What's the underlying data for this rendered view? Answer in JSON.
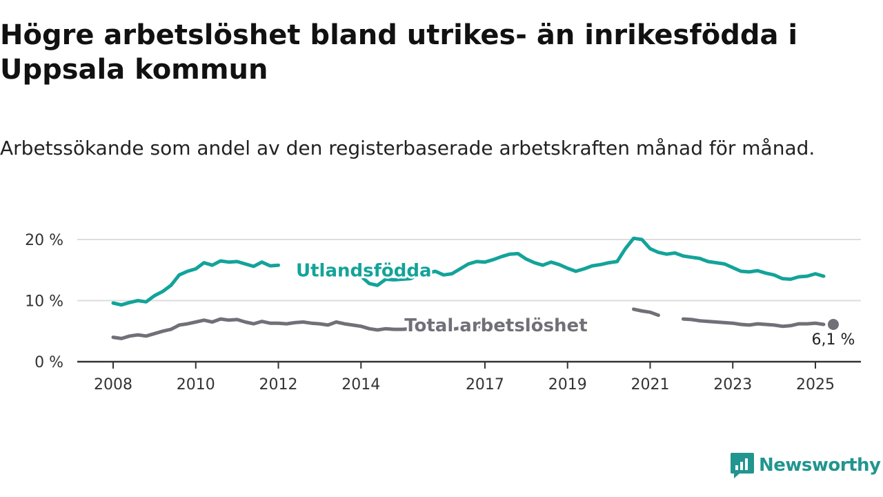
{
  "title": "Högre arbetslöshet bland utrikes- än inrikesfödda i Uppsala kommun",
  "subtitle": "Arbetssökande som andel av den registerbaserade arbetskraften månad för månad.",
  "brand": {
    "name": "Newsworthy",
    "icon": "newsworthy-logo-icon"
  },
  "colors": {
    "utlandsfodda": "#13a39a",
    "total": "#707078",
    "grid": "#dddddd",
    "axis": "#333333"
  },
  "chart_data": {
    "type": "line",
    "ylim": [
      0,
      20
    ],
    "xlim": [
      2007.9,
      2025.6
    ],
    "yticks": [
      0,
      10,
      20
    ],
    "ytick_labels": [
      "0 %",
      "10 %",
      "20 %"
    ],
    "xticks": [
      2008,
      2010,
      2012,
      2014,
      2017,
      2019,
      2021,
      2023,
      2025
    ],
    "xtick_labels": [
      "2008",
      "2010",
      "2012",
      "2014",
      "2017",
      "2019",
      "2021",
      "2023",
      "2025"
    ],
    "grid": "horizontal",
    "series": [
      {
        "name": "Utlandsfödda",
        "color": "#13a39a",
        "x": [
          2008.0,
          2008.2,
          2008.4,
          2008.6,
          2008.8,
          2009.0,
          2009.2,
          2009.4,
          2009.6,
          2009.8,
          2010.0,
          2010.2,
          2010.4,
          2010.6,
          2010.8,
          2011.0,
          2011.2,
          2011.4,
          2011.6,
          2011.8,
          2012.0,
          2012.2,
          2012.4,
          2012.6,
          2012.8,
          2013.0,
          2013.2,
          2013.4,
          2013.6,
          2013.8,
          2014.0,
          2014.2,
          2014.4,
          2014.6,
          2014.8,
          2015.0,
          2015.2,
          2015.4,
          2015.6,
          2015.8,
          2016.0,
          2016.2,
          2016.4,
          2016.6,
          2016.8,
          2017.0,
          2017.2,
          2017.4,
          2017.6,
          2017.8,
          2018.0,
          2018.2,
          2018.4,
          2018.6,
          2018.8,
          2019.0,
          2019.2,
          2019.4,
          2019.6,
          2019.8,
          2020.0,
          2020.2,
          2020.4,
          2020.6,
          2020.8,
          2021.0,
          2021.2,
          2021.4,
          2021.6,
          2021.8,
          2022.0,
          2022.2,
          2022.4,
          2022.6,
          2022.8,
          2023.0,
          2023.2,
          2023.4,
          2023.6,
          2023.8,
          2024.0,
          2024.2,
          2024.4,
          2024.6,
          2024.8,
          2025.0,
          2025.2
        ],
        "values": [
          9.6,
          9.3,
          9.7,
          10.0,
          9.8,
          10.8,
          11.5,
          12.5,
          14.2,
          14.8,
          15.2,
          16.2,
          15.8,
          16.5,
          16.3,
          16.4,
          16.0,
          15.6,
          16.3,
          15.7,
          15.8,
          null,
          null,
          null,
          null,
          null,
          null,
          null,
          null,
          null,
          14.0,
          12.8,
          12.5,
          13.5,
          13.4,
          13.5,
          13.6,
          14.3,
          14.5,
          14.8,
          14.2,
          14.4,
          15.2,
          16.0,
          16.4,
          16.3,
          16.7,
          17.2,
          17.6,
          17.7,
          16.8,
          16.2,
          15.8,
          16.3,
          15.9,
          15.3,
          14.8,
          15.2,
          15.7,
          15.9,
          16.2,
          16.4,
          18.5,
          20.2,
          20.0,
          18.5,
          17.9,
          17.6,
          17.8,
          17.3,
          17.1,
          16.9,
          16.4,
          16.2,
          16.0,
          15.4,
          14.8,
          14.7,
          14.9,
          14.5,
          14.2,
          13.6,
          13.5,
          13.9,
          14.0,
          14.4,
          14.0
        ],
        "label": {
          "text": "Utlandsfödda",
          "x": 2014.0,
          "y": 15.0
        }
      },
      {
        "name": "Total arbetslöshet",
        "color": "#707078",
        "x": [
          2008.0,
          2008.2,
          2008.4,
          2008.6,
          2008.8,
          2009.0,
          2009.2,
          2009.4,
          2009.6,
          2009.8,
          2010.0,
          2010.2,
          2010.4,
          2010.6,
          2010.8,
          2011.0,
          2011.2,
          2011.4,
          2011.6,
          2011.8,
          2012.0,
          2012.2,
          2012.4,
          2012.6,
          2012.8,
          2013.0,
          2013.2,
          2013.4,
          2013.6,
          2013.8,
          2014.0,
          2014.2,
          2014.4,
          2014.6,
          2014.8,
          2015.0,
          2015.2,
          2015.4,
          2015.6,
          2015.8,
          2016.0,
          2016.2,
          2016.4,
          2016.6,
          2016.8,
          2017.0,
          2017.2,
          2017.4,
          2017.6,
          2017.8,
          2018.0,
          2018.2,
          2018.4,
          2018.6,
          2018.8,
          2019.0,
          2019.2,
          2019.4,
          2019.6,
          2019.8,
          2020.0,
          2020.2,
          2020.4,
          2020.6,
          2020.8,
          2021.0,
          2021.2,
          2021.4,
          2021.6,
          2021.8,
          2022.0,
          2022.2,
          2022.4,
          2022.6,
          2022.8,
          2023.0,
          2023.2,
          2023.4,
          2023.6,
          2023.8,
          2024.0,
          2024.2,
          2024.4,
          2024.6,
          2024.8,
          2025.0,
          2025.2
        ],
        "values": [
          4.0,
          3.8,
          4.2,
          4.4,
          4.2,
          4.6,
          5.0,
          5.3,
          6.0,
          6.2,
          6.5,
          6.8,
          6.5,
          7.0,
          6.8,
          6.9,
          6.5,
          6.2,
          6.6,
          6.3,
          6.3,
          6.2,
          6.4,
          6.5,
          6.3,
          6.2,
          6.0,
          6.5,
          6.2,
          6.0,
          5.8,
          5.4,
          5.2,
          5.4,
          5.3,
          5.3,
          5.4,
          5.5,
          5.5,
          5.6,
          5.4,
          5.3,
          5.5,
          5.7,
          5.8,
          5.7,
          null,
          null,
          null,
          null,
          null,
          null,
          null,
          null,
          null,
          null,
          null,
          null,
          null,
          null,
          null,
          null,
          null,
          8.6,
          8.3,
          8.1,
          7.6,
          null,
          null,
          7.0,
          6.9,
          6.7,
          6.6,
          6.5,
          6.4,
          6.3,
          6.1,
          6.0,
          6.2,
          6.1,
          6.0,
          5.8,
          5.9,
          6.2,
          6.2,
          6.3,
          6.1
        ],
        "label": {
          "text": "Total arbetslöshet",
          "x": 2017.2,
          "y": 6.0
        },
        "end_label": "6,1 %"
      }
    ]
  }
}
